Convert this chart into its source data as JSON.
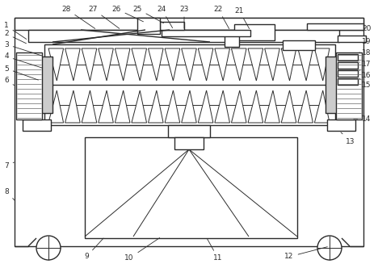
{
  "bg_color": "#ffffff",
  "line_color": "#2b2b2b",
  "lw": 1.0,
  "thin_lw": 0.7,
  "label_fontsize": 6.5,
  "fig_width": 4.68,
  "fig_height": 3.27,
  "dpi": 100
}
